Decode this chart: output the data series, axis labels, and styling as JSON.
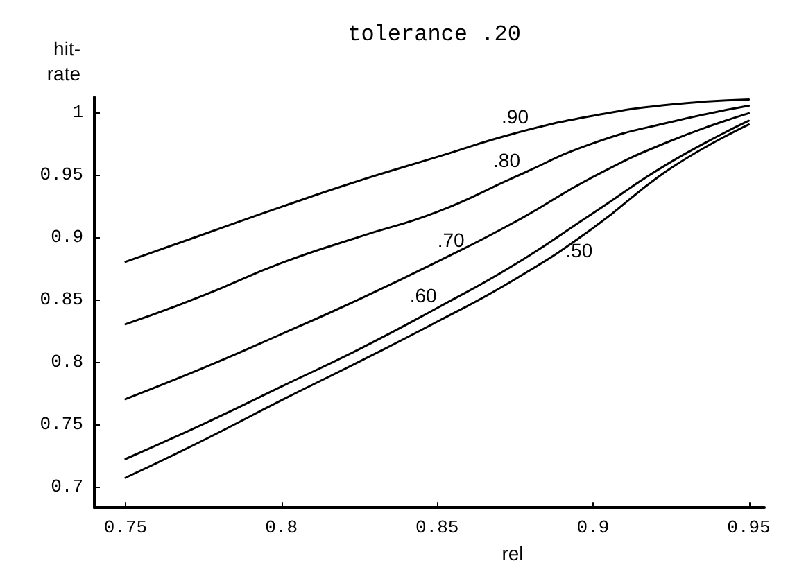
{
  "chart_data": {
    "type": "line",
    "title": "tolerance .20",
    "xlabel": "rel",
    "ylabel": "hit-\nrate",
    "x": [
      0.75,
      0.775,
      0.8,
      0.825,
      0.85,
      0.875,
      0.9,
      0.925,
      0.95
    ],
    "series": [
      {
        "name": ".90",
        "color": "#000000",
        "values": [
          0.88,
          0.902,
          0.924,
          0.945,
          0.964,
          0.983,
          0.997,
          1.006,
          1.01
        ]
      },
      {
        "name": ".80",
        "color": "#000000",
        "values": [
          0.83,
          0.853,
          0.879,
          0.9,
          0.92,
          0.948,
          0.975,
          0.992,
          1.005
        ]
      },
      {
        "name": ".70",
        "color": "#000000",
        "values": [
          0.77,
          0.795,
          0.822,
          0.85,
          0.88,
          0.912,
          0.948,
          0.977,
          0.999
        ]
      },
      {
        "name": ".60",
        "color": "#000000",
        "values": [
          0.722,
          0.75,
          0.78,
          0.81,
          0.843,
          0.878,
          0.919,
          0.96,
          0.993
        ]
      },
      {
        "name": ".50",
        "color": "#000000",
        "values": [
          0.707,
          0.737,
          0.769,
          0.8,
          0.832,
          0.866,
          0.907,
          0.955,
          0.99
        ]
      }
    ],
    "xlim": [
      0.74,
      0.955
    ],
    "xticks": [
      0.75,
      0.8,
      0.85,
      0.9,
      0.95
    ],
    "ylim": [
      0.683,
      1.012
    ],
    "yticks": [
      0.7,
      0.75,
      0.8,
      0.85,
      0.9,
      0.95,
      1
    ],
    "grid": false,
    "legend": false,
    "marker": "none",
    "line_style": "solid"
  }
}
